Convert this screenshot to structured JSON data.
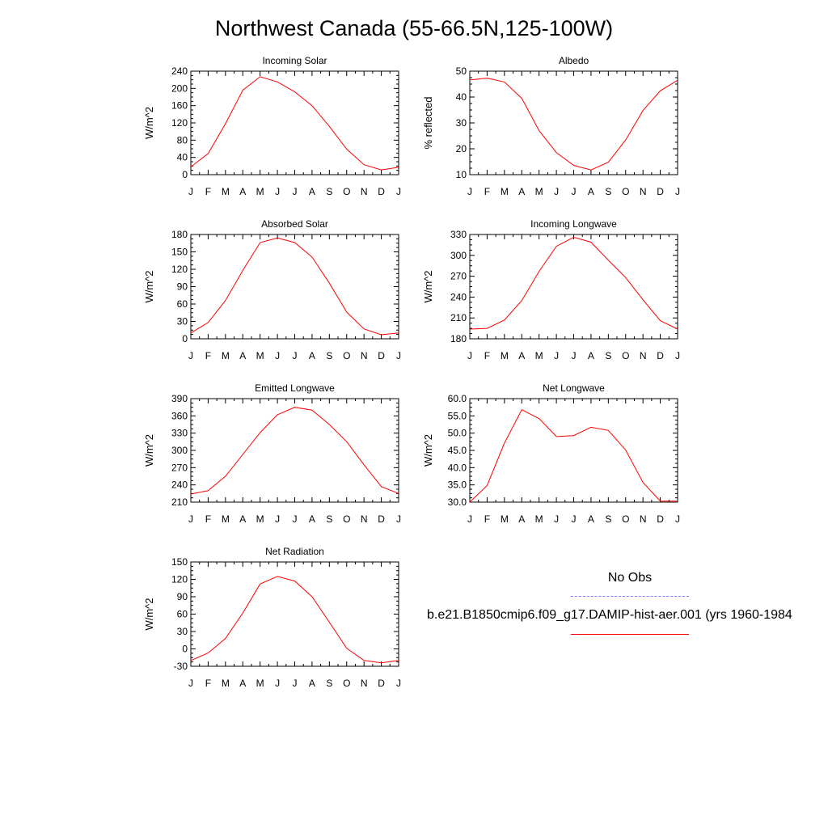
{
  "title": "Northwest Canada (55-66.5N,125-100W)",
  "colors": {
    "model_line": "#ff0000",
    "obs_line": "#8080ff",
    "axis": "#000000"
  },
  "legend": {
    "obs_label": "No Obs",
    "model_label": "b.e21.B1850cmip6.f09_g17.DAMIP-hist-aer.001 (yrs 1960-1984"
  },
  "chart_data": [
    {
      "type": "line",
      "title": "Incoming Solar",
      "ylabel": "W/m^2",
      "categories": [
        "J",
        "F",
        "M",
        "A",
        "M",
        "J",
        "J",
        "A",
        "S",
        "O",
        "N",
        "D",
        "J"
      ],
      "ylim": [
        0,
        240
      ],
      "yticks": [
        "0",
        "40",
        "80",
        "120",
        "160",
        "200",
        "240"
      ],
      "series": [
        {
          "values": [
            18,
            49,
            118,
            196,
            227,
            215,
            192,
            160,
            112,
            59,
            23,
            11,
            17
          ]
        }
      ]
    },
    {
      "type": "line",
      "title": "Albedo",
      "ylabel": "% reflected",
      "categories": [
        "J",
        "F",
        "M",
        "A",
        "M",
        "J",
        "J",
        "A",
        "S",
        "O",
        "N",
        "D",
        "J"
      ],
      "ylim": [
        10,
        50
      ],
      "yticks": [
        "10",
        "20",
        "30",
        "40",
        "50"
      ],
      "series": [
        {
          "values": [
            46.6,
            47.3,
            45.8,
            39.5,
            27,
            18.5,
            13.6,
            11.8,
            14.8,
            23.4,
            34.8,
            42.4,
            46.5
          ]
        }
      ]
    },
    {
      "type": "line",
      "title": "Absorbed Solar",
      "ylabel": "W/m^2",
      "categories": [
        "J",
        "F",
        "M",
        "A",
        "M",
        "J",
        "J",
        "A",
        "S",
        "O",
        "N",
        "D",
        "J"
      ],
      "ylim": [
        0,
        180
      ],
      "yticks": [
        "0",
        "30",
        "60",
        "90",
        "120",
        "150",
        "180"
      ],
      "series": [
        {
          "values": [
            10,
            28,
            66,
            118,
            166,
            174,
            166,
            141,
            96,
            46,
            17,
            7,
            10
          ]
        }
      ]
    },
    {
      "type": "line",
      "title": "Incoming Longwave",
      "ylabel": "W/m^2",
      "categories": [
        "J",
        "F",
        "M",
        "A",
        "M",
        "J",
        "J",
        "A",
        "S",
        "O",
        "N",
        "D",
        "J"
      ],
      "ylim": [
        180,
        330
      ],
      "yticks": [
        "180",
        "210",
        "240",
        "270",
        "300",
        "330"
      ],
      "series": [
        {
          "values": [
            194,
            195,
            207,
            235,
            277,
            313,
            326,
            319,
            293,
            268,
            236,
            206,
            194
          ]
        }
      ]
    },
    {
      "type": "line",
      "title": "Emitted Longwave",
      "ylabel": "W/m^2",
      "categories": [
        "J",
        "F",
        "M",
        "A",
        "M",
        "J",
        "J",
        "A",
        "S",
        "O",
        "N",
        "D",
        "J"
      ],
      "ylim": [
        210,
        390
      ],
      "yticks": [
        "210",
        "240",
        "270",
        "300",
        "330",
        "360",
        "390"
      ],
      "series": [
        {
          "values": [
            224,
            230,
            255,
            293,
            331,
            362,
            375,
            370,
            345,
            315,
            275,
            237,
            225
          ]
        }
      ]
    },
    {
      "type": "line",
      "title": "Net Longwave",
      "ylabel": "W/m^2",
      "categories": [
        "J",
        "F",
        "M",
        "A",
        "M",
        "J",
        "J",
        "A",
        "S",
        "O",
        "N",
        "D",
        "J"
      ],
      "ylim": [
        30,
        60
      ],
      "yticks": [
        "30.0",
        "35.0",
        "40.0",
        "45.0",
        "50.0",
        "55.0",
        "60.0"
      ],
      "series": [
        {
          "values": [
            30,
            34.8,
            47.1,
            56.8,
            54.2,
            49.0,
            49.3,
            51.7,
            50.8,
            45.1,
            35.7,
            30.3,
            30.3
          ]
        }
      ]
    },
    {
      "type": "line",
      "title": "Net Radiation",
      "ylabel": "W/m^2",
      "categories": [
        "J",
        "F",
        "M",
        "A",
        "M",
        "J",
        "J",
        "A",
        "S",
        "O",
        "N",
        "D",
        "J"
      ],
      "ylim": [
        -30,
        150
      ],
      "yticks": [
        "-30",
        "0",
        "30",
        "60",
        "90",
        "120",
        "150"
      ],
      "series": [
        {
          "values": [
            -20,
            -7,
            18,
            62,
            112,
            125,
            117,
            90,
            46,
            1,
            -20,
            -24,
            -20
          ]
        }
      ]
    }
  ]
}
